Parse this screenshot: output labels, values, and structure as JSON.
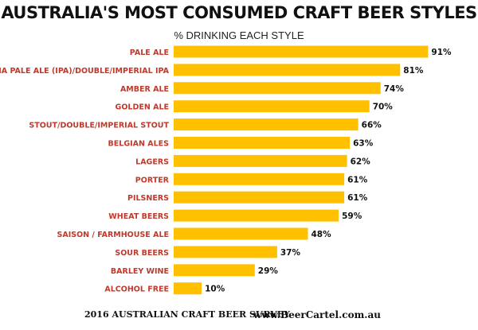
{
  "chart_data": {
    "type": "bar",
    "orientation": "horizontal",
    "title": "AUSTRALIA'S MOST CONSUMED CRAFT BEER STYLES",
    "subtitle": "% DRINKING EACH STYLE",
    "categories": [
      "PALE ALE",
      "INDIA PALE ALE (IPA)/DOUBLE/IMPERIAL IPA",
      "AMBER ALE",
      "GOLDEN ALE",
      "STOUT/DOUBLE/IMPERIAL STOUT",
      "BELGIAN ALES",
      "LAGERS",
      "PORTER",
      "PILSNERS",
      "WHEAT BEERS",
      "SAISON / FARMHOUSE ALE",
      "SOUR BEERS",
      "BARLEY WINE",
      "ALCOHOL FREE"
    ],
    "values": [
      91,
      81,
      74,
      70,
      66,
      63,
      62,
      61,
      61,
      59,
      48,
      37,
      29,
      10
    ],
    "value_labels": [
      "91%",
      "81%",
      "74%",
      "70%",
      "66%",
      "63%",
      "62%",
      "61%",
      "61%",
      "59%",
      "48%",
      "37%",
      "29%",
      "10%"
    ],
    "xlim": [
      0,
      100
    ],
    "grid": false,
    "colors": {
      "bar": "#FFC000",
      "category_label": "#C0392B",
      "value_label": "#111111"
    }
  },
  "footer": {
    "survey": "2016 AUSTRALIAN CRAFT BEER SURVEY",
    "site": "www.BeerCartel.com.au"
  }
}
